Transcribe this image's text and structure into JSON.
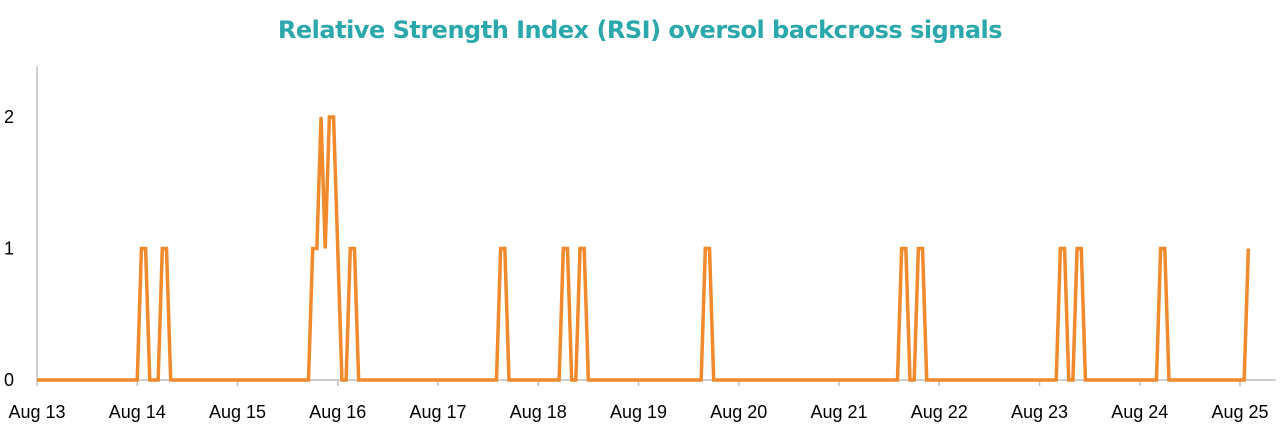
{
  "chart_data": {
    "type": "line",
    "title": "Relative Strength Index (RSI) oversol backcross signals",
    "xlabel": "",
    "ylabel": "",
    "x_tick_labels": [
      "Aug 13",
      "Aug 14",
      "Aug 15",
      "Aug 16",
      "Aug 17",
      "Aug 18",
      "Aug 19",
      "Aug 20",
      "Aug 21",
      "Aug 22",
      "Aug 23",
      "Aug 24",
      "Aug 25"
    ],
    "y_tick_labels": [
      "0",
      "1",
      "2"
    ],
    "xlim": [
      "Aug 13",
      "Aug 25 09:00"
    ],
    "ylim": [
      0,
      2.4
    ],
    "grid": false,
    "legend": "none",
    "series_color": "#f08a2c",
    "title_color": "#2aa8ac",
    "series": [
      {
        "x": [
          "Aug 13 00:00",
          "Aug 14 00:00",
          "Aug 14 01:00",
          "Aug 14 02:00",
          "Aug 14 03:00",
          "Aug 14 04:00",
          "Aug 14 05:00",
          "Aug 14 06:00",
          "Aug 14 07:00",
          "Aug 14 08:00",
          "Aug 14 09:00",
          "Aug 15 17:00",
          "Aug 15 18:00",
          "Aug 15 19:00",
          "Aug 15 20:00",
          "Aug 15 21:00",
          "Aug 15 22:00",
          "Aug 15 23:00",
          "Aug 16 00:00",
          "Aug 16 01:00",
          "Aug 16 02:00",
          "Aug 16 03:00",
          "Aug 16 04:00",
          "Aug 16 05:00",
          "Aug 17 14:00",
          "Aug 17 15:00",
          "Aug 17 16:00",
          "Aug 17 17:00",
          "Aug 18 05:00",
          "Aug 18 06:00",
          "Aug 18 07:00",
          "Aug 18 08:00",
          "Aug 18 09:00",
          "Aug 18 10:00",
          "Aug 18 11:00",
          "Aug 18 12:00",
          "Aug 19 15:00",
          "Aug 19 16:00",
          "Aug 19 17:00",
          "Aug 19 18:00",
          "Aug 21 14:00",
          "Aug 21 15:00",
          "Aug 21 16:00",
          "Aug 21 17:00",
          "Aug 21 18:00",
          "Aug 21 19:00",
          "Aug 21 20:00",
          "Aug 21 21:00",
          "Aug 23 04:00",
          "Aug 23 05:00",
          "Aug 23 06:00",
          "Aug 23 07:00",
          "Aug 23 08:00",
          "Aug 23 09:00",
          "Aug 23 10:00",
          "Aug 23 11:00",
          "Aug 24 04:00",
          "Aug 24 05:00",
          "Aug 24 06:00",
          "Aug 24 07:00",
          "Aug 25 01:00",
          "Aug 25 02:00"
        ],
        "y": [
          0,
          0,
          1,
          1,
          0,
          0,
          0,
          1,
          1,
          0,
          0,
          0,
          1,
          1,
          2,
          1,
          2,
          2,
          1,
          0,
          0,
          1,
          1,
          0,
          0,
          1,
          1,
          0,
          0,
          1,
          1,
          0,
          0,
          1,
          1,
          0,
          0,
          1,
          1,
          0,
          0,
          1,
          1,
          0,
          0,
          1,
          1,
          0,
          0,
          1,
          1,
          0,
          0,
          1,
          1,
          0,
          0,
          1,
          1,
          0,
          0,
          1
        ]
      }
    ]
  }
}
